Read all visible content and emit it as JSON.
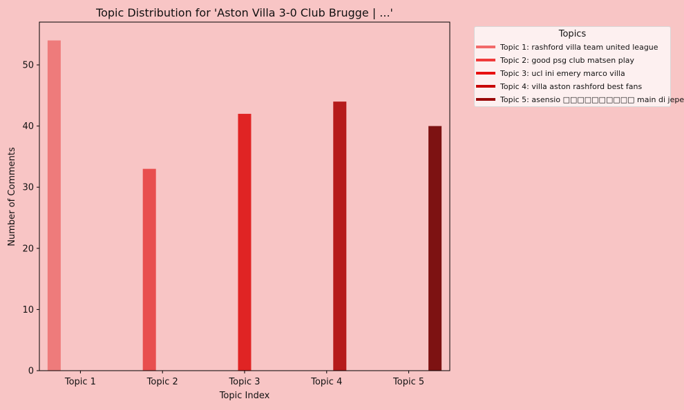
{
  "chart_data": {
    "type": "bar",
    "title": "Topic Distribution for 'Aston Villa 3-0 Club Brugge | ...'",
    "xlabel": "Topic Index",
    "ylabel": "Number of Comments",
    "categories": [
      "Topic 1",
      "Topic 2",
      "Topic 3",
      "Topic 4",
      "Topic 5"
    ],
    "ylim": [
      0,
      57
    ],
    "yticks": [
      0,
      10,
      20,
      30,
      40,
      50
    ],
    "legend_title": "Topics",
    "legend_placement": "outside-top-right",
    "grid": false,
    "series": [
      {
        "name": "Topic 1: rashford villa team united league",
        "values": [
          54,
          0,
          0,
          0,
          0
        ],
        "color": "#ee7b7b",
        "legend_color": "#f26a6a"
      },
      {
        "name": "Topic 2: good psg club matsen play",
        "values": [
          0,
          33,
          0,
          0,
          0
        ],
        "color": "#e84e4e",
        "legend_color": "#f03a3a"
      },
      {
        "name": "Topic 3: ucl ini emery marco villa",
        "values": [
          0,
          0,
          42,
          0,
          0
        ],
        "color": "#e02424",
        "legend_color": "#e81010"
      },
      {
        "name": "Topic 4: villa aston rashford best fans",
        "values": [
          0,
          0,
          0,
          44,
          0
        ],
        "color": "#b51b1b",
        "legend_color": "#c80606"
      },
      {
        "name": "Topic 5: asensio □□□□□□□□□□ main di jepe",
        "values": [
          0,
          0,
          0,
          0,
          40
        ],
        "color": "#7d1212",
        "legend_color": "#9a0a0a"
      }
    ]
  }
}
